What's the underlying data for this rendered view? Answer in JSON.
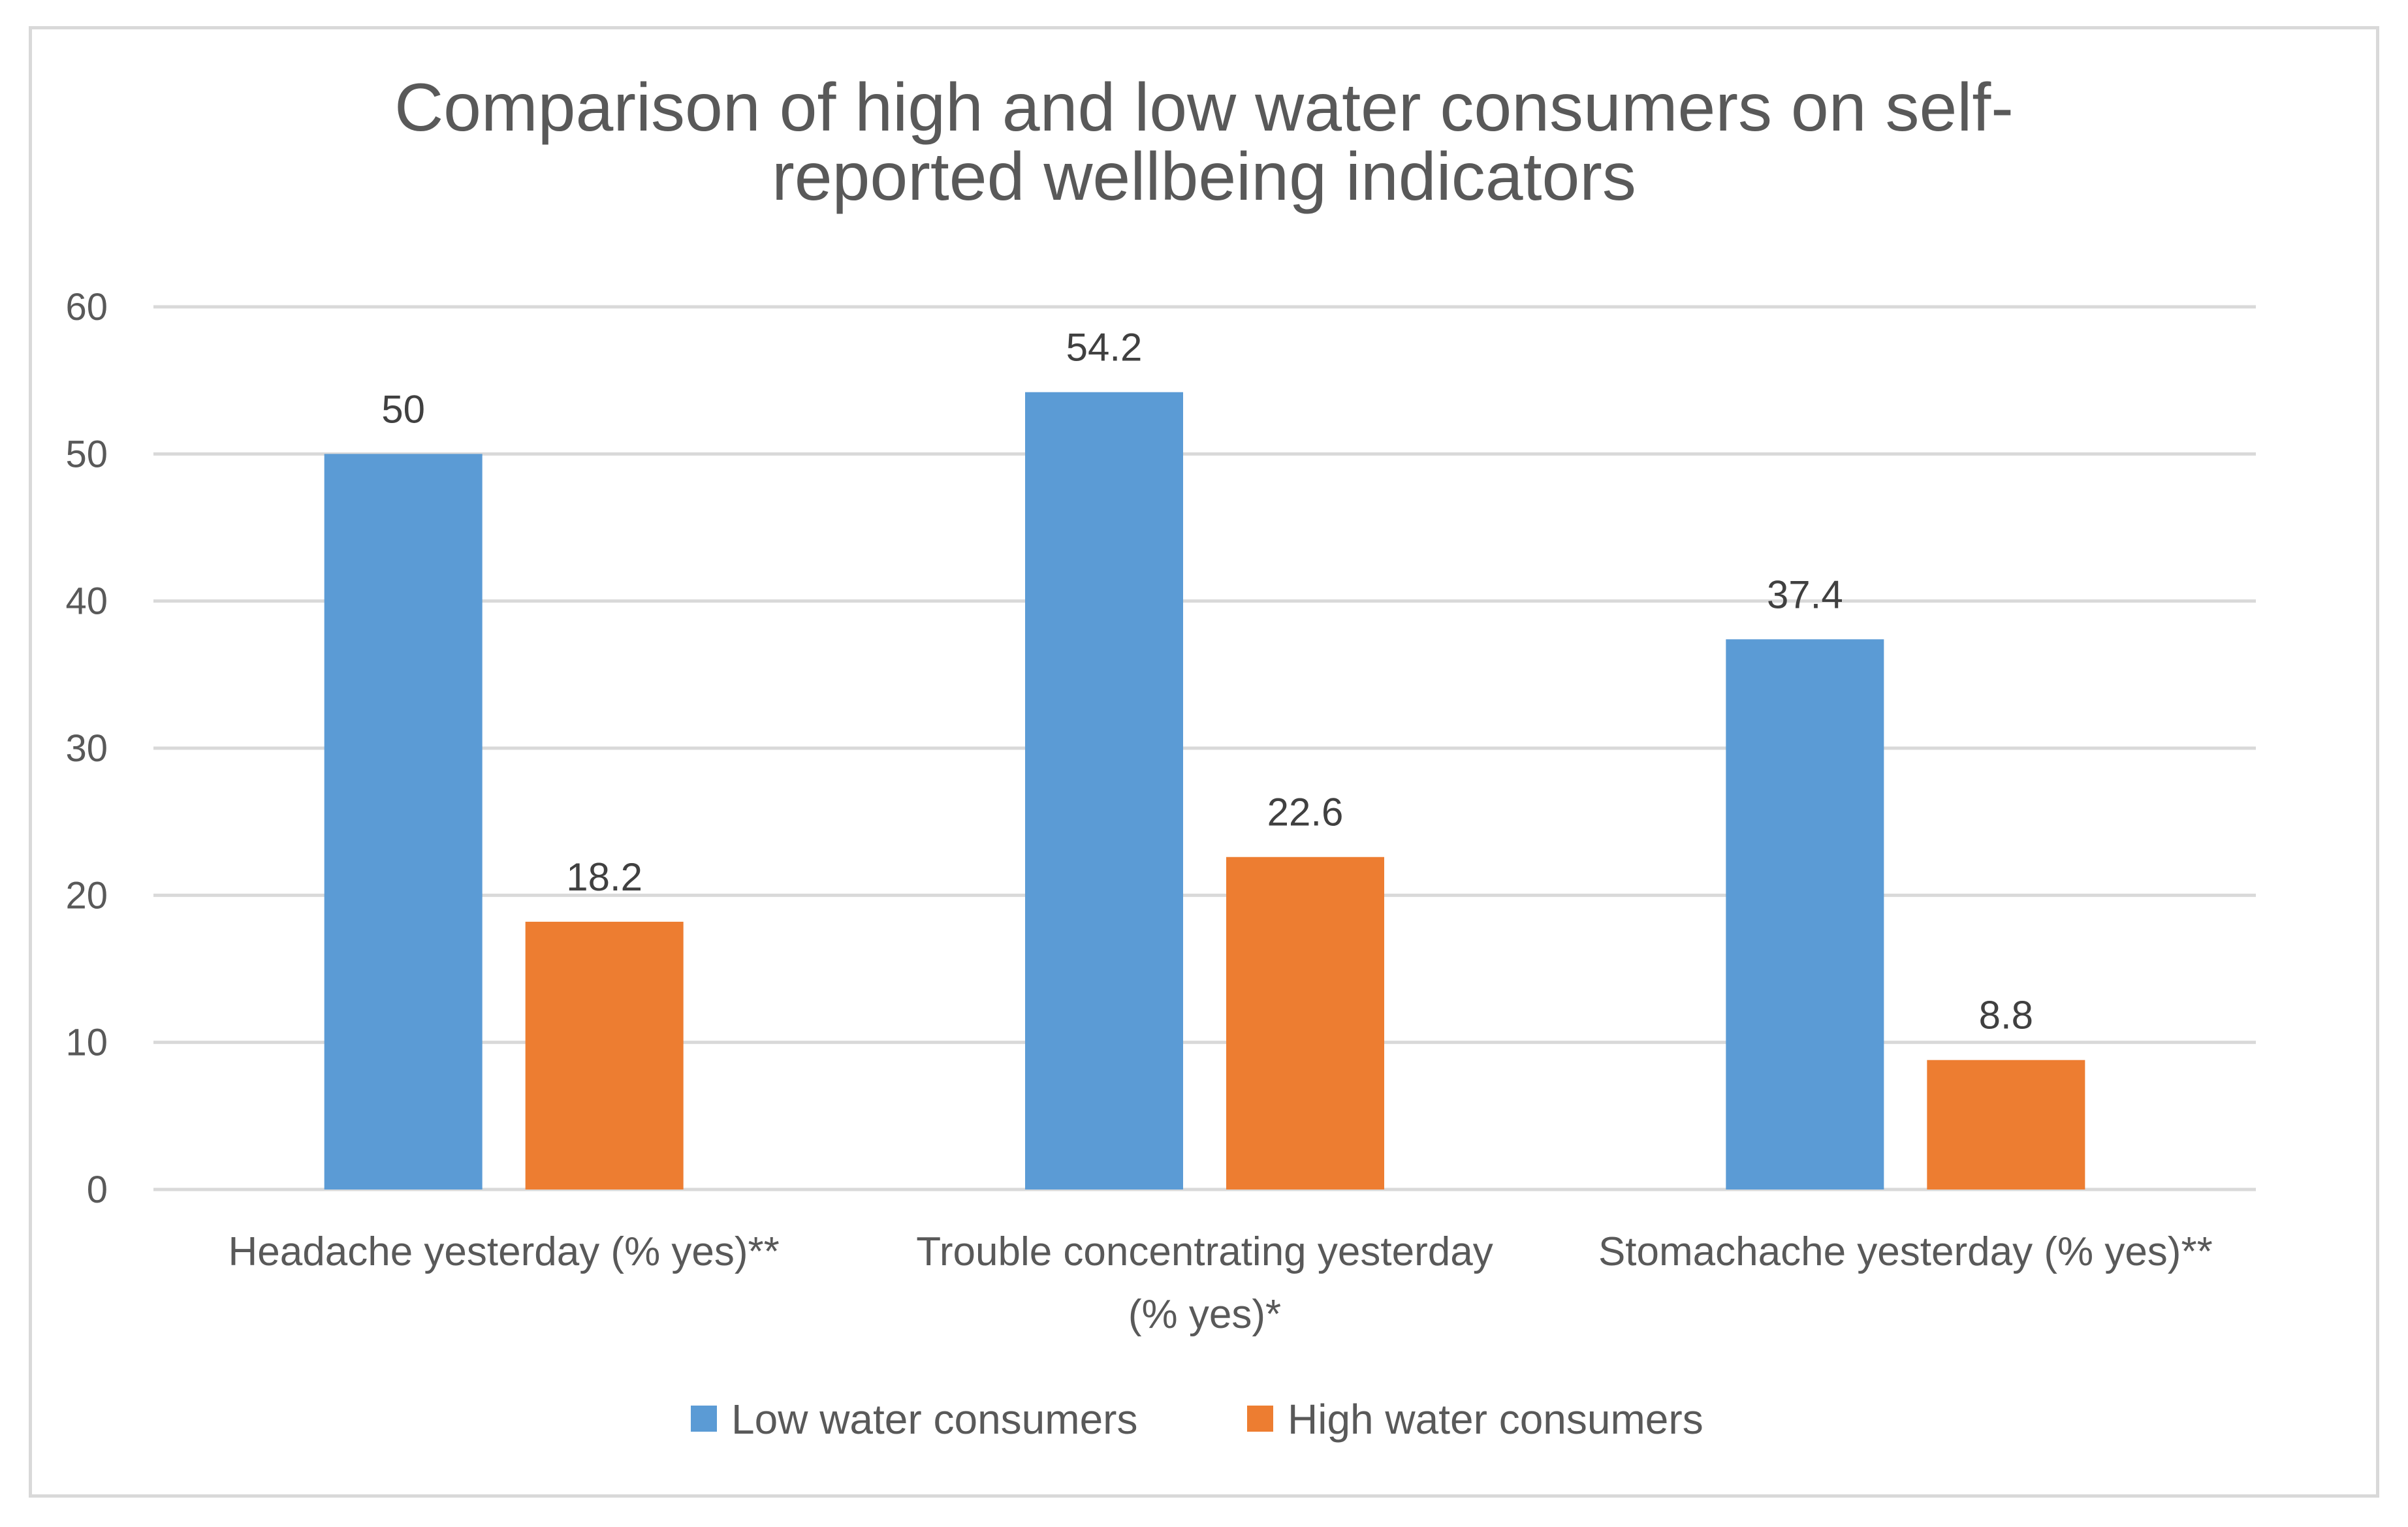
{
  "chart_data": {
    "type": "bar",
    "title": "Comparison of high and low water consumers on self-reported wellbeing indicators",
    "title_lines": [
      "Comparison of high and low water consumers on self-",
      "reported wellbeing indicators"
    ],
    "xlabel": "",
    "ylabel": "",
    "ylim": [
      0,
      60
    ],
    "yticks": [
      0,
      10,
      20,
      30,
      40,
      50,
      60
    ],
    "grid": true,
    "legend_position": "bottom",
    "categories": [
      [
        "Headache yesterday (% yes)**"
      ],
      [
        "Trouble concentrating yesterday",
        "(% yes)*"
      ],
      [
        "Stomachache yesterday (% yes)**"
      ]
    ],
    "series": [
      {
        "name": "Low water consumers",
        "color": "#5b9bd5",
        "values": [
          50,
          54.2,
          37.4
        ],
        "labels": [
          "50",
          "54.2",
          "37.4"
        ]
      },
      {
        "name": "High water consumers",
        "color": "#ed7d31",
        "values": [
          18.2,
          22.6,
          8.8
        ],
        "labels": [
          "18.2",
          "22.6",
          "8.8"
        ]
      }
    ]
  }
}
